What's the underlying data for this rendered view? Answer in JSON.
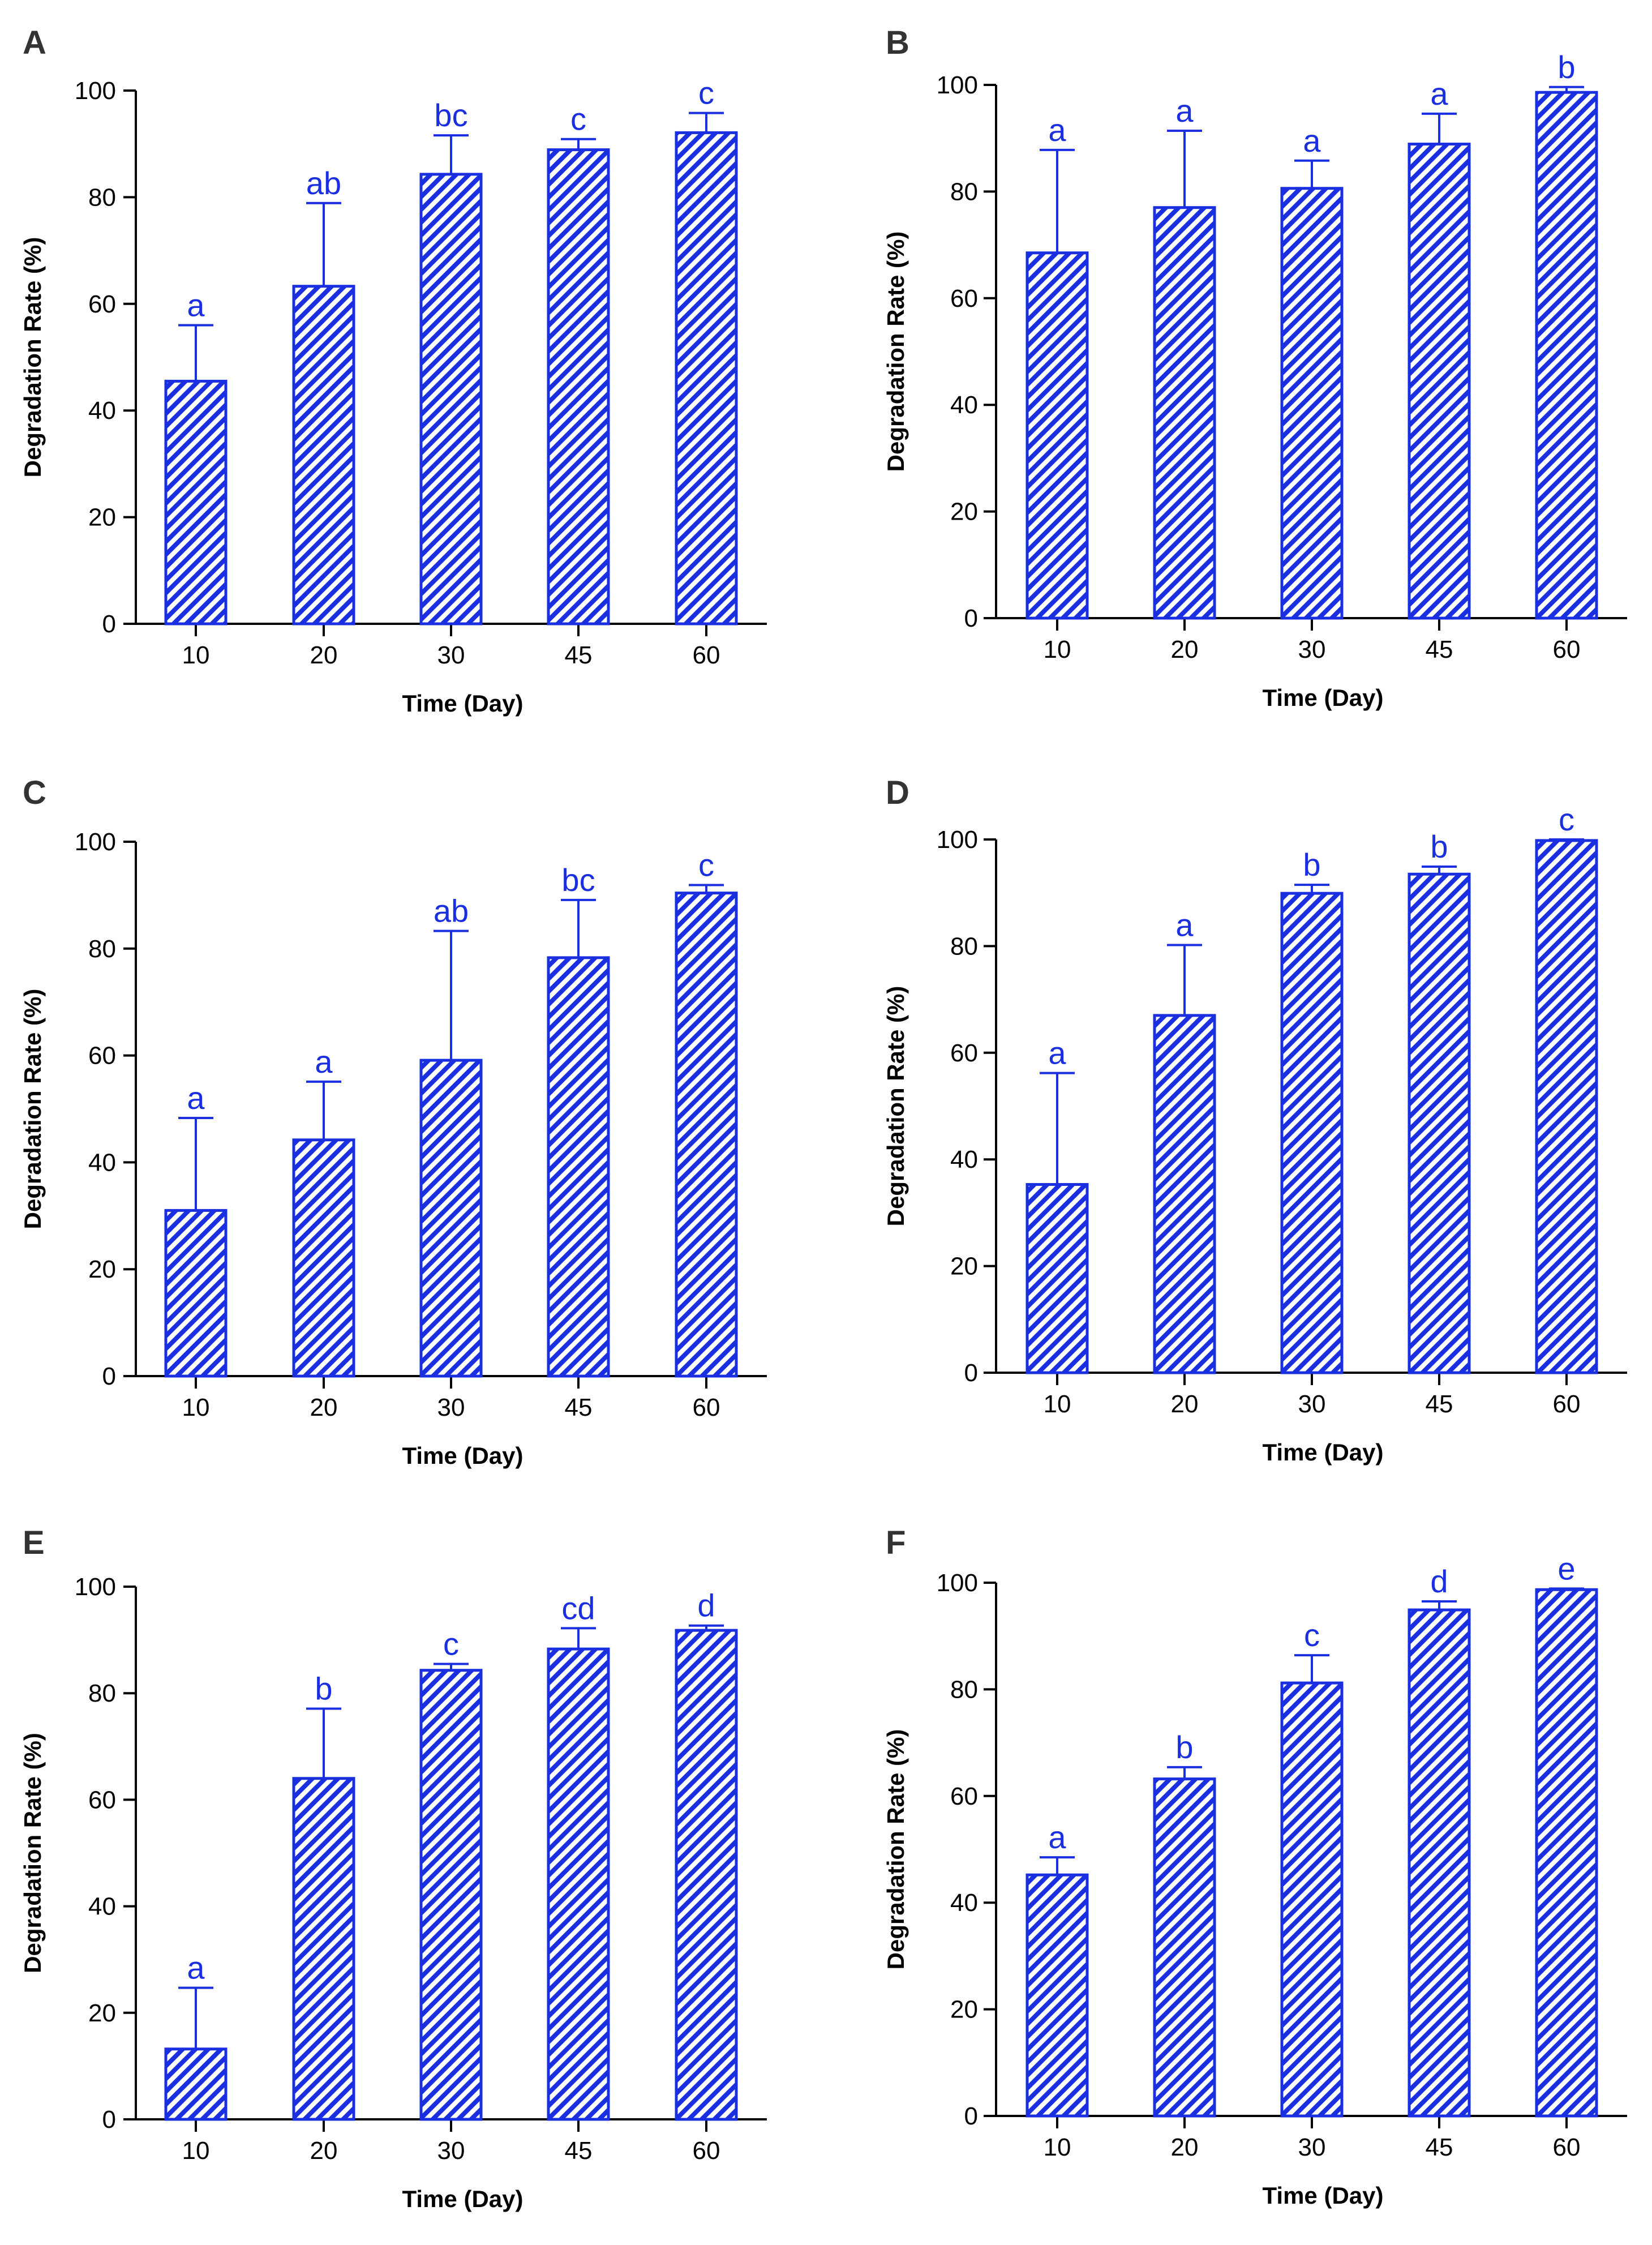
{
  "colors": {
    "bar": "#1a2fe0",
    "axis": "#000000",
    "letter": "#333333"
  },
  "chart_data": [
    {
      "panel": "A",
      "type": "bar",
      "categories": [
        "10",
        "20",
        "30",
        "45",
        "60"
      ],
      "values": [
        45.5,
        63.3,
        84.3,
        88.9,
        92.1
      ],
      "errors": [
        10.5,
        15.6,
        7.3,
        2.0,
        3.7
      ],
      "significance": [
        "a",
        "ab",
        "bc",
        "c",
        "c"
      ],
      "xlabel": "Time (Day)",
      "ylabel": "Degradation Rate (%)",
      "ylim": [
        0,
        100
      ],
      "yticks": [
        "0",
        "20",
        "40",
        "60",
        "80",
        "100"
      ]
    },
    {
      "panel": "B",
      "type": "bar",
      "categories": [
        "10",
        "20",
        "30",
        "45",
        "60"
      ],
      "values": [
        68.5,
        77.0,
        80.6,
        88.9,
        98.6
      ],
      "errors": [
        19.3,
        14.4,
        5.2,
        5.7,
        1.0
      ],
      "significance": [
        "a",
        "a",
        "a",
        "a",
        "b"
      ],
      "xlabel": "Time (Day)",
      "ylabel": "Degradation Rate (%)",
      "ylim": [
        0,
        100
      ],
      "yticks": [
        "0",
        "20",
        "40",
        "60",
        "80",
        "100"
      ]
    },
    {
      "panel": "C",
      "type": "bar",
      "categories": [
        "10",
        "20",
        "30",
        "45",
        "60"
      ],
      "values": [
        31.0,
        44.2,
        59.1,
        78.3,
        90.4
      ],
      "errors": [
        17.3,
        10.9,
        24.2,
        10.8,
        1.5
      ],
      "significance": [
        "a",
        "a",
        "ab",
        "bc",
        "c"
      ],
      "xlabel": "Time (Day)",
      "ylabel": "Degradation Rate (%)",
      "ylim": [
        0,
        100
      ],
      "yticks": [
        "0",
        "20",
        "40",
        "60",
        "80",
        "100"
      ]
    },
    {
      "panel": "D",
      "type": "bar",
      "categories": [
        "10",
        "20",
        "30",
        "45",
        "60"
      ],
      "values": [
        35.3,
        67.0,
        89.9,
        93.5,
        99.8
      ],
      "errors": [
        20.9,
        13.2,
        1.6,
        1.4,
        0.2
      ],
      "significance": [
        "a",
        "a",
        "b",
        "b",
        "c"
      ],
      "xlabel": "Time (Day)",
      "ylabel": "Degradation Rate (%)",
      "ylim": [
        0,
        100
      ],
      "yticks": [
        "0",
        "20",
        "40",
        "60",
        "80",
        "100"
      ]
    },
    {
      "panel": "E",
      "type": "bar",
      "categories": [
        "10",
        "20",
        "30",
        "45",
        "60"
      ],
      "values": [
        13.2,
        64.0,
        84.3,
        88.3,
        91.8
      ],
      "errors": [
        11.5,
        13.1,
        1.2,
        3.9,
        0.9
      ],
      "significance": [
        "a",
        "b",
        "c",
        "cd",
        "d"
      ],
      "xlabel": "Time (Day)",
      "ylabel": "Degradation Rate (%)",
      "ylim": [
        0,
        100
      ],
      "yticks": [
        "0",
        "20",
        "40",
        "60",
        "80",
        "100"
      ]
    },
    {
      "panel": "F",
      "type": "bar",
      "categories": [
        "10",
        "20",
        "30",
        "45",
        "60"
      ],
      "values": [
        45.2,
        63.2,
        81.2,
        94.9,
        98.7
      ],
      "errors": [
        3.3,
        2.2,
        5.2,
        1.6,
        0.2
      ],
      "significance": [
        "a",
        "b",
        "c",
        "d",
        "e"
      ],
      "xlabel": "Time (Day)",
      "ylabel": "Degradation Rate (%)",
      "ylim": [
        0,
        100
      ],
      "yticks": [
        "0",
        "20",
        "40",
        "60",
        "80",
        "100"
      ]
    }
  ]
}
